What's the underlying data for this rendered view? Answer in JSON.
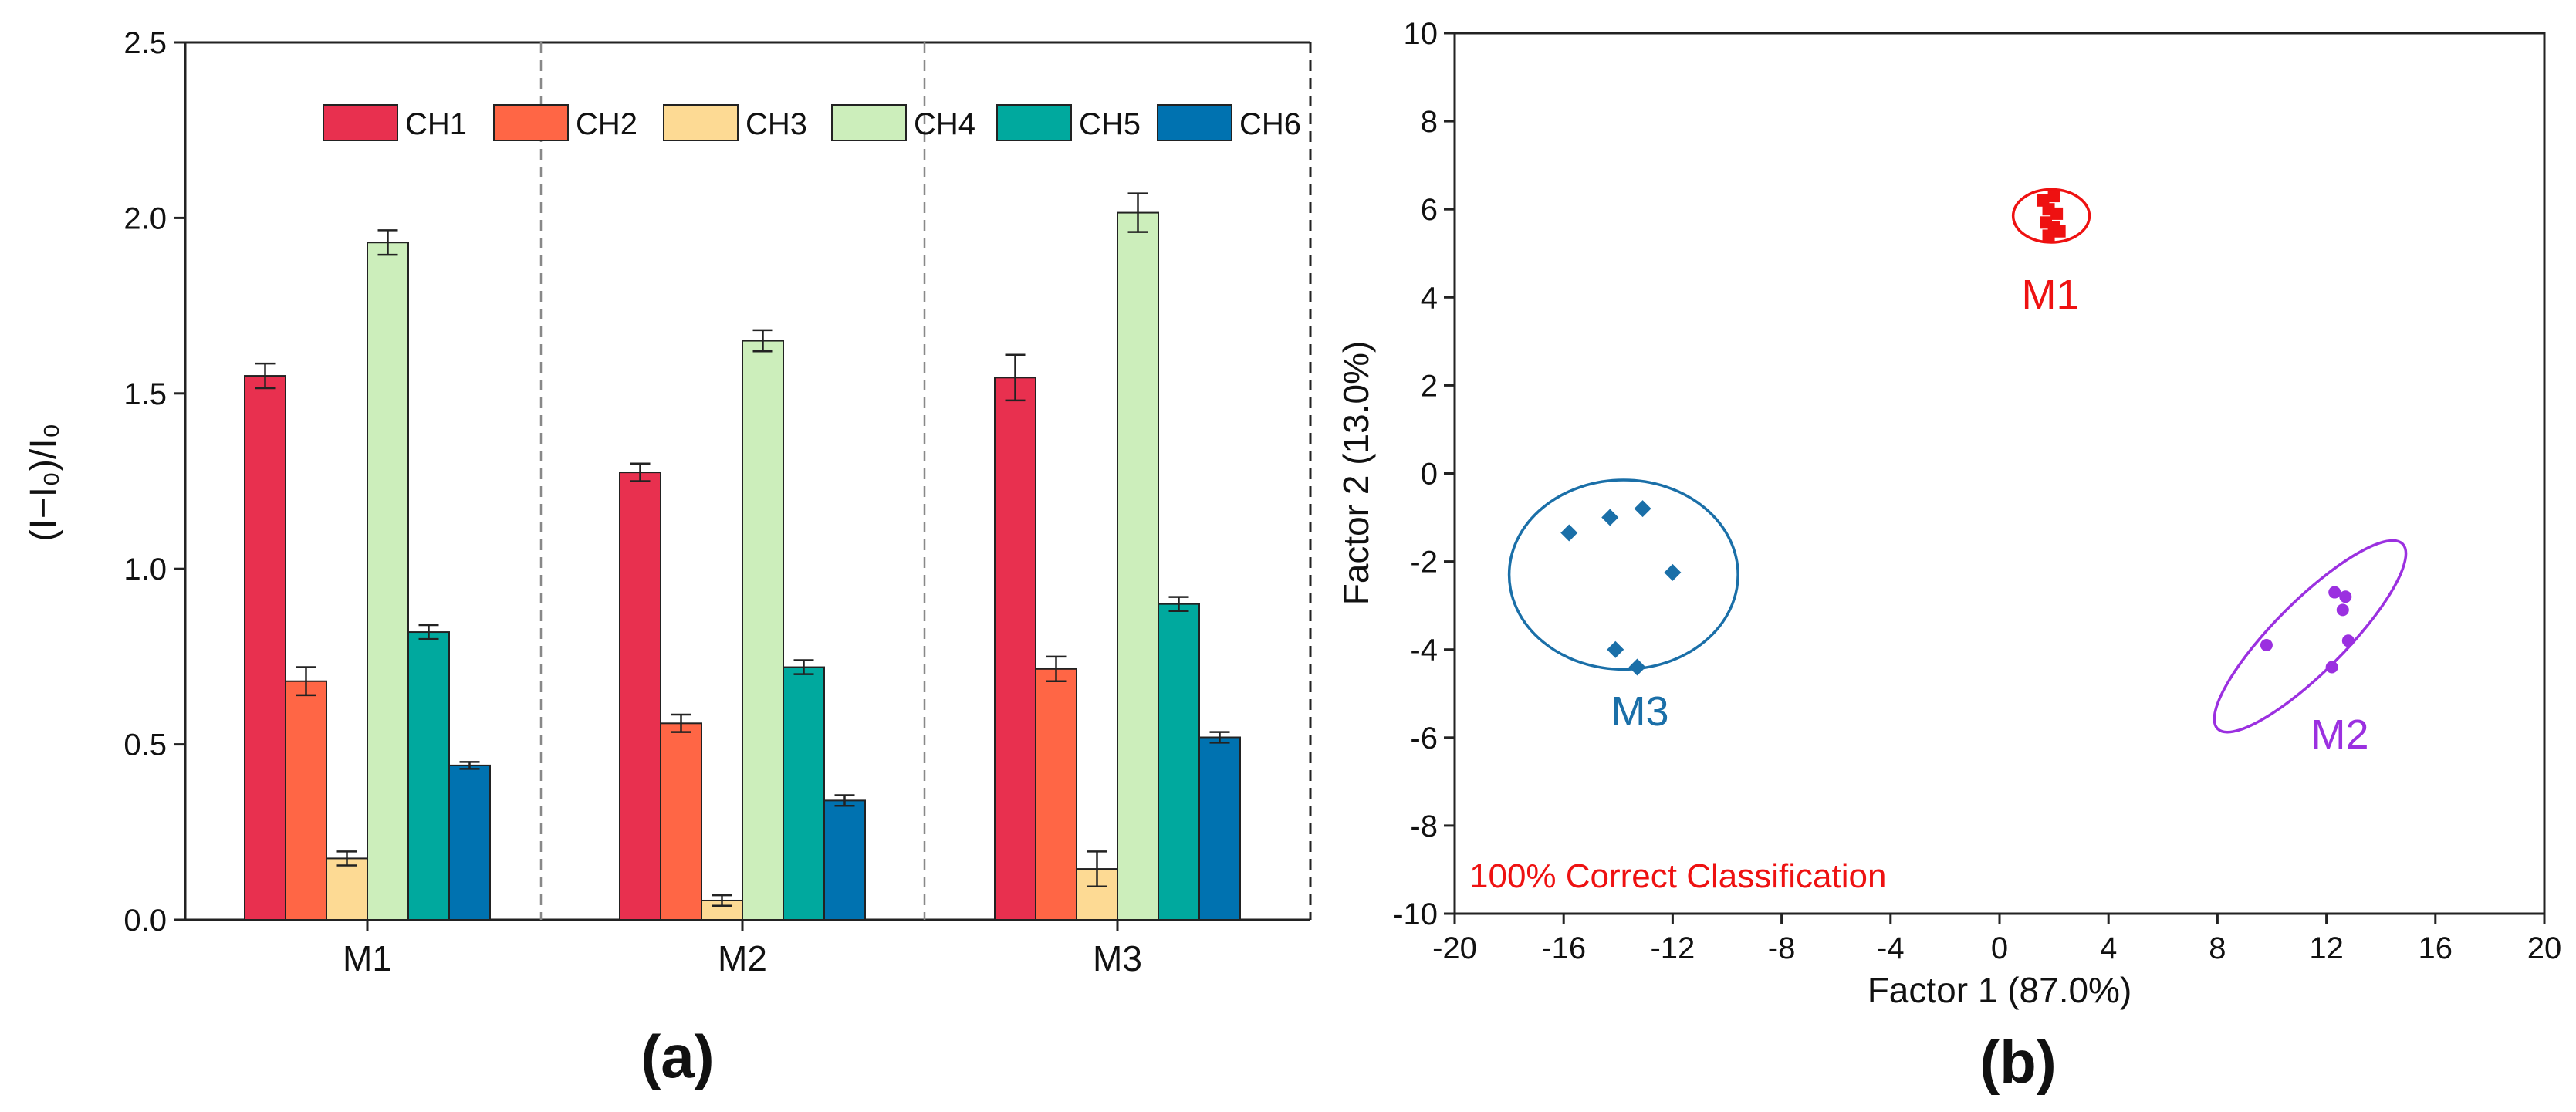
{
  "chart_data": [
    {
      "type": "bar",
      "title": "",
      "panel_label": "(a)",
      "xlabel": "",
      "ylabel": "(I−I₀)/I₀",
      "ylim": [
        0,
        2.5
      ],
      "yticks": [
        "0.0",
        "0.5",
        "1.0",
        "1.5",
        "2.0",
        "2.5"
      ],
      "categories": [
        "M1",
        "M2",
        "M3"
      ],
      "legend_position": "top",
      "series": [
        {
          "name": "CH1",
          "color": "#E8304F",
          "values": [
            1.55,
            1.275,
            1.545
          ],
          "errors": [
            0.035,
            0.025,
            0.065
          ]
        },
        {
          "name": "CH2",
          "color": "#FF6645",
          "values": [
            0.68,
            0.56,
            0.715
          ],
          "errors": [
            0.04,
            0.025,
            0.035
          ]
        },
        {
          "name": "CH3",
          "color": "#FDDA94",
          "values": [
            0.175,
            0.055,
            0.145
          ],
          "errors": [
            0.02,
            0.015,
            0.05
          ]
        },
        {
          "name": "CH4",
          "color": "#CCEEBB",
          "values": [
            1.93,
            1.65,
            2.015
          ],
          "errors": [
            0.035,
            0.03,
            0.055
          ]
        },
        {
          "name": "CH5",
          "color": "#00A99E",
          "values": [
            0.82,
            0.72,
            0.9
          ],
          "errors": [
            0.02,
            0.02,
            0.02
          ]
        },
        {
          "name": "CH6",
          "color": "#0072B0",
          "values": [
            0.44,
            0.34,
            0.52
          ],
          "errors": [
            0.01,
            0.015,
            0.015
          ]
        }
      ]
    },
    {
      "type": "scatter",
      "title": "",
      "panel_label": "(b)",
      "xlabel": "Factor 1 (87.0%)",
      "ylabel": "Factor 2 (13.0%)",
      "xlim": [
        -20,
        20
      ],
      "ylim": [
        -10,
        10
      ],
      "xticks": [
        "-20",
        "-16",
        "-12",
        "-8",
        "-4",
        "0",
        "4",
        "8",
        "12",
        "16",
        "20"
      ],
      "yticks": [
        "10",
        "8",
        "6",
        "4",
        "2",
        "0",
        "-2",
        "-4",
        "-6",
        "-8",
        "-10"
      ],
      "annotation": "100% Correct Classification",
      "annotation_color": "#EE1111",
      "groups": [
        {
          "name": "M1",
          "color": "#EE1111",
          "marker": "square",
          "points": [
            [
              1.6,
              6.2
            ],
            [
              2.0,
              6.3
            ],
            [
              1.8,
              6.0
            ],
            [
              2.1,
              5.9
            ],
            [
              1.7,
              5.7
            ],
            [
              2.0,
              5.6
            ],
            [
              1.8,
              5.4
            ],
            [
              2.2,
              5.5
            ]
          ],
          "ellipse": {
            "cx": 1.9,
            "cy": 5.85,
            "rx": 1.4,
            "ry": 0.6,
            "angle": 0
          }
        },
        {
          "name": "M2",
          "color": "#9B30E0",
          "marker": "circle",
          "points": [
            [
              12.3,
              -2.7
            ],
            [
              12.7,
              -2.8
            ],
            [
              12.6,
              -3.1
            ],
            [
              12.8,
              -3.8
            ],
            [
              12.2,
              -4.4
            ],
            [
              9.8,
              -3.9
            ]
          ],
          "ellipse": {
            "cx": 11.4,
            "cy": -3.7,
            "rx": 4.8,
            "ry": 1.3,
            "angle": 45
          }
        },
        {
          "name": "M3",
          "color": "#1A6FA8",
          "marker": "diamond",
          "points": [
            [
              -15.8,
              -1.35
            ],
            [
              -14.3,
              -1.0
            ],
            [
              -13.1,
              -0.8
            ],
            [
              -12.0,
              -2.25
            ],
            [
              -14.1,
              -4.0
            ],
            [
              -13.3,
              -4.4
            ]
          ],
          "ellipse": {
            "cx": -13.8,
            "cy": -2.3,
            "rx": 4.2,
            "ry": 2.15,
            "angle": 0
          }
        }
      ]
    }
  ]
}
